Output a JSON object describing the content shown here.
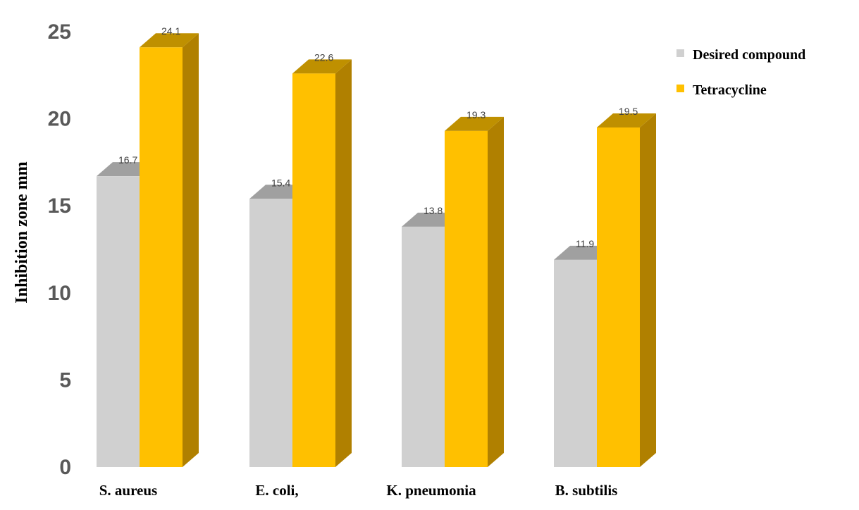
{
  "chart_data": {
    "type": "bar",
    "title": "",
    "xlabel": "",
    "ylabel": "Inhibition zone mm",
    "ylim": [
      0,
      25
    ],
    "yticks": [
      "0",
      "5",
      "10",
      "15",
      "20",
      "25"
    ],
    "categories": [
      "S. aureus",
      "E. coli,",
      "K. pneumonia",
      "B. subtilis"
    ],
    "series": [
      {
        "name": "Desired compound",
        "values": [
          16.7,
          15.4,
          13.8,
          11.9
        ],
        "labels": [
          "16.7",
          "15.4",
          "13.8",
          "11.9"
        ],
        "color_front": "#d0d0d0",
        "color_side": "#a6a6a6",
        "color_top": "#a0a0a0"
      },
      {
        "name": "Tetracycline",
        "values": [
          24.1,
          22.6,
          19.3,
          19.5
        ],
        "labels": [
          "24.1",
          "22.6",
          "19.3",
          "19.5"
        ],
        "color_front": "#ffc000",
        "color_side": "#b08000",
        "color_top": "#bf9000"
      }
    ],
    "grid": false,
    "legend_position": "top-right",
    "style": "3d-clustered-bar"
  }
}
